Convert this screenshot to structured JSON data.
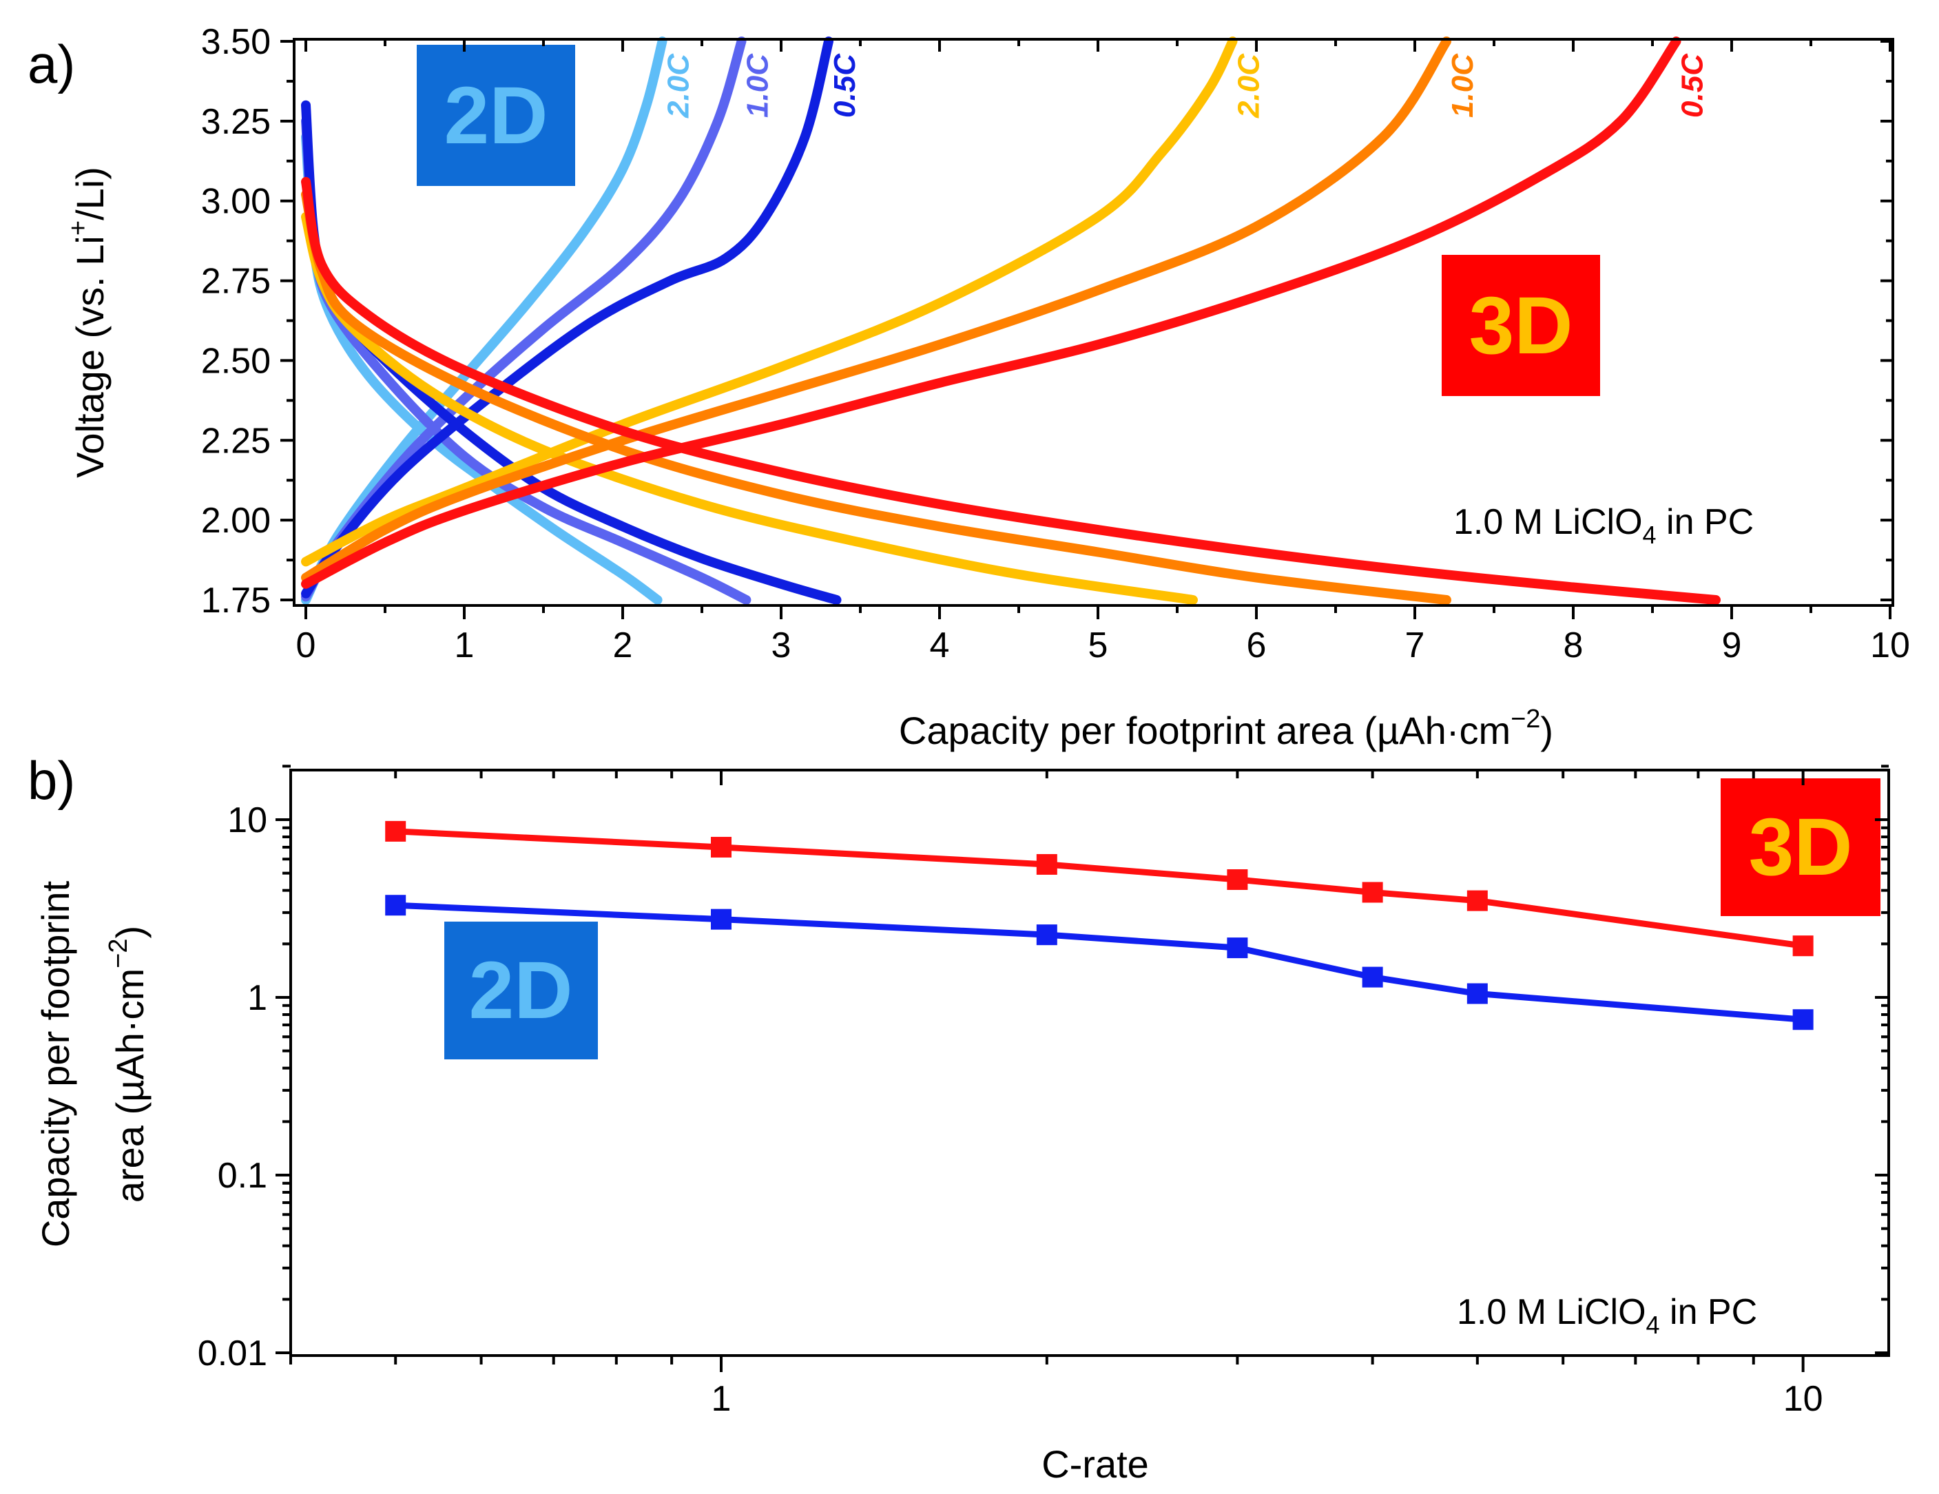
{
  "chart_data": [
    {
      "type": "line",
      "panel_label": "a)",
      "xlabel": "Capacity per footprint area (µAh·cm",
      "xlabel_sup": "−2",
      "xlabel_end": ")",
      "ylabel": "Voltage (vs. Li",
      "ylabel_sup": "+",
      "ylabel_end": "/Li)",
      "xlim": [
        0,
        10
      ],
      "ylim": [
        1.75,
        3.5
      ],
      "xticks": [
        "0",
        "1",
        "2",
        "3",
        "4",
        "5",
        "6",
        "7",
        "8",
        "9",
        "10"
      ],
      "yticks": [
        "1.75",
        "2.00",
        "2.25",
        "2.50",
        "2.75",
        "3.00",
        "3.25",
        "3.50"
      ],
      "annotation": {
        "pre": "1.0 M LiClO",
        "sub": "4",
        "post": " in PC"
      },
      "badges": [
        {
          "text": "2D",
          "bg": "#0f6cd6",
          "fg": "#5ebdf7"
        },
        {
          "text": "3D",
          "bg": "#ff0000",
          "fg": "#ffc000"
        }
      ],
      "series": [
        {
          "name": "2D 2.0C",
          "label": "2.0C",
          "color": "#5ebdf7",
          "discharge": [
            [
              0,
              3.2
            ],
            [
              0.05,
              2.85
            ],
            [
              0.15,
              2.65
            ],
            [
              0.4,
              2.45
            ],
            [
              0.8,
              2.25
            ],
            [
              1.2,
              2.1
            ],
            [
              1.6,
              1.96
            ],
            [
              2.0,
              1.83
            ],
            [
              2.22,
              1.75
            ]
          ],
          "charge": [
            [
              0,
              1.75
            ],
            [
              0.2,
              1.95
            ],
            [
              0.6,
              2.22
            ],
            [
              1.0,
              2.45
            ],
            [
              1.4,
              2.68
            ],
            [
              1.75,
              2.9
            ],
            [
              2.0,
              3.1
            ],
            [
              2.15,
              3.3
            ],
            [
              2.25,
              3.5
            ]
          ]
        },
        {
          "name": "2D 1.0C",
          "label": "1.0C",
          "color": "#5a64f0",
          "discharge": [
            [
              0,
              3.25
            ],
            [
              0.05,
              2.88
            ],
            [
              0.15,
              2.68
            ],
            [
              0.5,
              2.45
            ],
            [
              1.0,
              2.2
            ],
            [
              1.5,
              2.04
            ],
            [
              2.0,
              1.93
            ],
            [
              2.5,
              1.82
            ],
            [
              2.78,
              1.75
            ]
          ],
          "charge": [
            [
              0,
              1.76
            ],
            [
              0.2,
              1.93
            ],
            [
              0.6,
              2.18
            ],
            [
              1.0,
              2.38
            ],
            [
              1.5,
              2.6
            ],
            [
              2.0,
              2.8
            ],
            [
              2.35,
              3.0
            ],
            [
              2.6,
              3.25
            ],
            [
              2.75,
              3.5
            ]
          ]
        },
        {
          "name": "2D 0.5C",
          "label": "0.5C",
          "color": "#0f1fe0",
          "discharge": [
            [
              0,
              3.3
            ],
            [
              0.05,
              2.9
            ],
            [
              0.15,
              2.7
            ],
            [
              0.5,
              2.5
            ],
            [
              1.0,
              2.28
            ],
            [
              1.5,
              2.1
            ],
            [
              2.0,
              1.98
            ],
            [
              2.5,
              1.88
            ],
            [
              3.0,
              1.8
            ],
            [
              3.35,
              1.75
            ]
          ],
          "charge": [
            [
              0,
              1.77
            ],
            [
              0.2,
              1.92
            ],
            [
              0.6,
              2.15
            ],
            [
              1.2,
              2.4
            ],
            [
              1.8,
              2.62
            ],
            [
              2.3,
              2.75
            ],
            [
              2.65,
              2.82
            ],
            [
              2.9,
              2.95
            ],
            [
              3.15,
              3.2
            ],
            [
              3.3,
              3.5
            ]
          ]
        },
        {
          "name": "3D 2.0C",
          "label": "2.0C",
          "color": "#ffc000",
          "discharge": [
            [
              0,
              2.95
            ],
            [
              0.1,
              2.75
            ],
            [
              0.3,
              2.6
            ],
            [
              0.8,
              2.4
            ],
            [
              1.5,
              2.22
            ],
            [
              2.5,
              2.05
            ],
            [
              3.5,
              1.93
            ],
            [
              4.5,
              1.83
            ],
            [
              5.6,
              1.75
            ]
          ],
          "charge": [
            [
              0,
              1.87
            ],
            [
              0.5,
              2.0
            ],
            [
              1.0,
              2.1
            ],
            [
              2.0,
              2.3
            ],
            [
              3.0,
              2.48
            ],
            [
              4.0,
              2.68
            ],
            [
              5.0,
              2.95
            ],
            [
              5.4,
              3.15
            ],
            [
              5.7,
              3.35
            ],
            [
              5.85,
              3.5
            ]
          ]
        },
        {
          "name": "3D 1.0C",
          "label": "1.0C",
          "color": "#ff8000",
          "discharge": [
            [
              0,
              3.02
            ],
            [
              0.1,
              2.78
            ],
            [
              0.3,
              2.62
            ],
            [
              1.0,
              2.42
            ],
            [
              2.0,
              2.22
            ],
            [
              3.0,
              2.08
            ],
            [
              4.0,
              1.98
            ],
            [
              5.0,
              1.9
            ],
            [
              6.0,
              1.82
            ],
            [
              7.2,
              1.75
            ]
          ],
          "charge": [
            [
              0,
              1.82
            ],
            [
              0.5,
              1.97
            ],
            [
              1.0,
              2.08
            ],
            [
              2.0,
              2.25
            ],
            [
              3.0,
              2.4
            ],
            [
              4.0,
              2.55
            ],
            [
              5.0,
              2.72
            ],
            [
              6.0,
              2.92
            ],
            [
              6.8,
              3.2
            ],
            [
              7.2,
              3.5
            ]
          ]
        },
        {
          "name": "3D 0.5C",
          "label": "0.5C",
          "color": "#ff1010",
          "discharge": [
            [
              0,
              3.06
            ],
            [
              0.1,
              2.8
            ],
            [
              0.4,
              2.64
            ],
            [
              1.0,
              2.47
            ],
            [
              2.0,
              2.28
            ],
            [
              3.0,
              2.15
            ],
            [
              4.0,
              2.05
            ],
            [
              5.0,
              1.97
            ],
            [
              6.0,
              1.9
            ],
            [
              7.0,
              1.84
            ],
            [
              8.0,
              1.79
            ],
            [
              8.9,
              1.75
            ]
          ],
          "charge": [
            [
              0,
              1.8
            ],
            [
              0.5,
              1.93
            ],
            [
              1.0,
              2.03
            ],
            [
              2.0,
              2.18
            ],
            [
              3.0,
              2.3
            ],
            [
              4.0,
              2.43
            ],
            [
              5.0,
              2.55
            ],
            [
              6.0,
              2.7
            ],
            [
              7.0,
              2.88
            ],
            [
              7.8,
              3.08
            ],
            [
              8.3,
              3.25
            ],
            [
              8.65,
              3.5
            ]
          ]
        }
      ]
    },
    {
      "type": "line",
      "panel_label": "b)",
      "xlabel": "C-rate",
      "ylabel_line1": "Capacity per footprint",
      "ylabel_line2": "area (µAh·cm",
      "ylabel_sup": "−2",
      "ylabel_end": ")",
      "xscale": "log",
      "yscale": "log",
      "xlim": [
        0.4,
        12
      ],
      "ylim": [
        0.01,
        20
      ],
      "xticks": [
        "1",
        "10"
      ],
      "yticks": [
        "0.01",
        "0.1",
        "1",
        "10"
      ],
      "annotation": {
        "pre": "1.0 M LiClO",
        "sub": "4",
        "post": " in PC"
      },
      "badges": [
        {
          "text": "3D",
          "bg": "#ff0000",
          "fg": "#ffc000"
        },
        {
          "text": "2D",
          "bg": "#0f6cd6",
          "fg": "#5ebdf7"
        }
      ],
      "series": [
        {
          "name": "3D",
          "color": "#ff1010",
          "x": [
            0.5,
            1,
            2,
            3,
            4,
            5,
            10
          ],
          "y": [
            8.6,
            7.0,
            5.6,
            4.6,
            3.9,
            3.5,
            1.95
          ]
        },
        {
          "name": "2D",
          "color": "#1020f0",
          "x": [
            0.5,
            1,
            2,
            3,
            4,
            5,
            10
          ],
          "y": [
            3.3,
            2.75,
            2.25,
            1.9,
            1.3,
            1.05,
            0.75
          ]
        }
      ]
    }
  ]
}
